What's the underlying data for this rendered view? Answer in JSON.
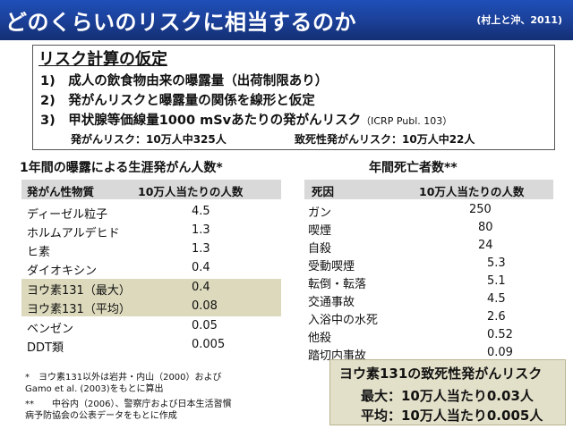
{
  "header": {
    "title": "どのくらいのリスクに相当するのか",
    "citation": "(村上と沖、2011)"
  },
  "assumptions": {
    "title": "リスク計算の仮定",
    "items": [
      "1)　成人の飲食物由来の曝露量（出荷制限あり）",
      "2)　発がんリスクと曝露量の関係を線形と仮定",
      "3)　甲状腺等価線量1000 mSvあたりの発がんリスク"
    ],
    "item3_ref": "（ICRP Publ. 103）",
    "sub_cancer": "発がんリスク：10万人中325人",
    "sub_fatal": "致死性発がんリスク：10万人中22人"
  },
  "lifetime_cancer": {
    "title": "1年間の曝露による生涯発がん人数*",
    "headers": [
      "発がん性物質",
      "10万人当たりの人数"
    ],
    "rows": [
      {
        "name": "ディーゼル粒子",
        "value": "4.5"
      },
      {
        "name": "ホルムアルデヒド",
        "value": "1.3"
      },
      {
        "name": "ヒ素",
        "value": "1.3"
      },
      {
        "name": "ダイオキシン",
        "value": "0.4"
      },
      {
        "name": "ヨウ素131（最大）",
        "value": "0.4"
      },
      {
        "name": "ヨウ素131（平均）",
        "value": "0.08"
      },
      {
        "name": "ベンゼン",
        "value": "0.05"
      },
      {
        "name": "DDT類",
        "value": "0.005"
      }
    ]
  },
  "annual_deaths": {
    "title": "年間死亡者数**",
    "headers": [
      "死因",
      "10万人当たりの人数"
    ],
    "rows": [
      {
        "name": "ガン",
        "value": "250"
      },
      {
        "name": "喫煙",
        "value": "80"
      },
      {
        "name": "自殺",
        "value": "24"
      },
      {
        "name": "受動喫煙",
        "value": "5.3"
      },
      {
        "name": "転倒・転落",
        "value": "5.1"
      },
      {
        "name": "交通事故",
        "value": "4.5"
      },
      {
        "name": "入浴中の水死",
        "value": "2.6"
      },
      {
        "name": "他殺",
        "value": "0.52"
      },
      {
        "name": "踏切内事故",
        "value": "0.09"
      }
    ]
  },
  "notes": {
    "n1_a": "*　ヨウ素131以外は岩井・内山（2000）および",
    "n1_b": "Gamo et al. (2003)をもとに算出",
    "n2_a": "**　　中谷内（2006）、警察庁および日本生活習慣",
    "n2_b": "病予防協会の公表データをもとに作成"
  },
  "iodine_risk": {
    "title": "ヨウ素131の致死性発がんリスク",
    "max": "最大：10万人当たり0.03人",
    "avg": "平均：10万人当たり0.005人"
  }
}
